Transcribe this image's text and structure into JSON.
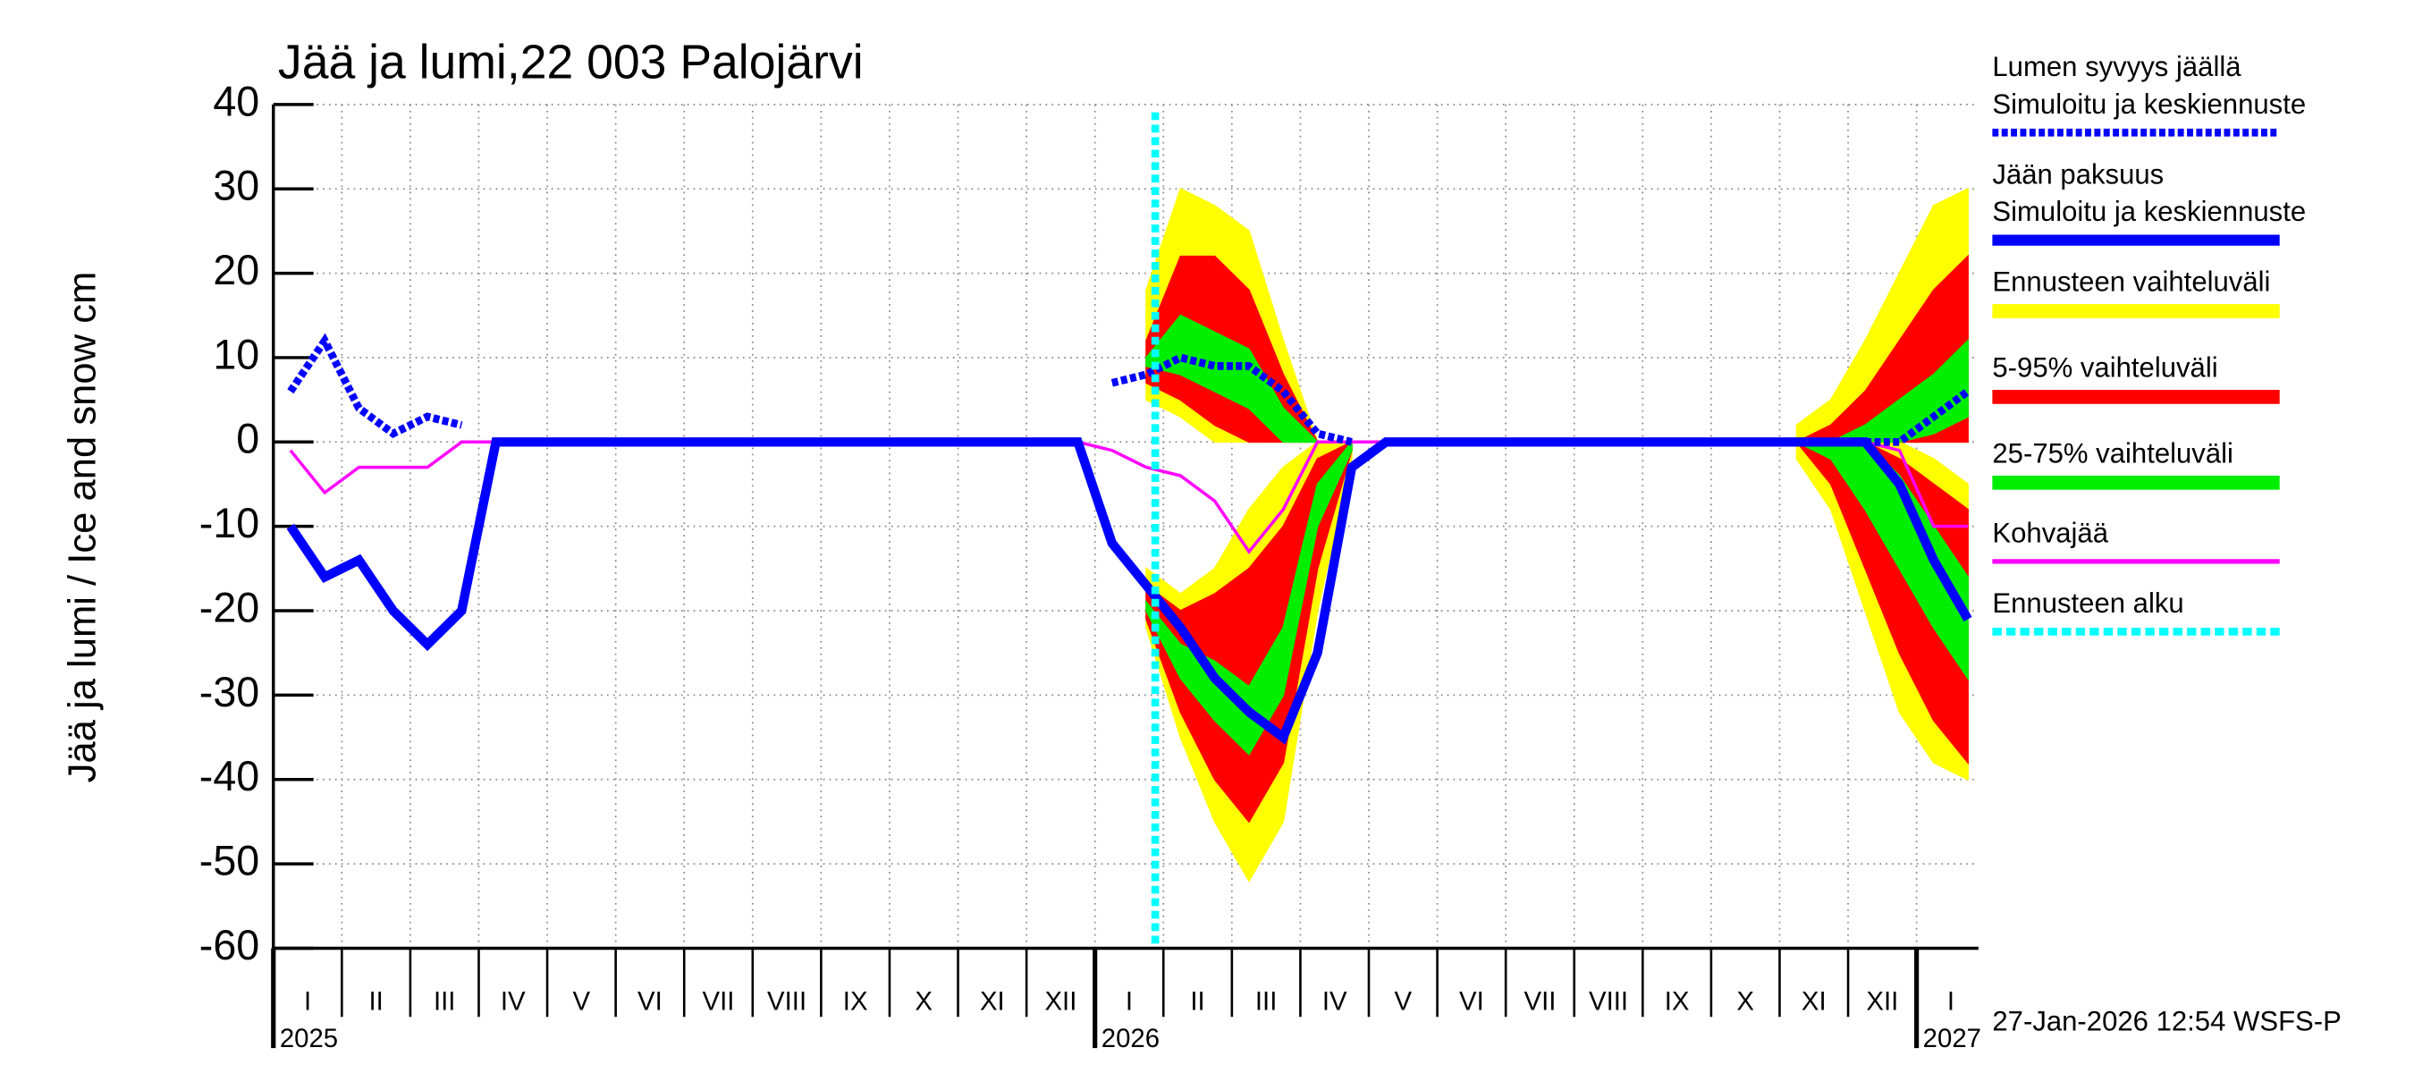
{
  "chart_data": {
    "type": "line",
    "title": "Jää ja lumi,22 003 Palojärvi",
    "y_label": "Jää ja lumi / Ice and snow    cm",
    "footer": "27-Jan-2026 12:54 WSFS-P",
    "categories": [
      "I",
      null,
      "II",
      null,
      "III",
      null,
      "IV",
      null,
      "V",
      null,
      "VI",
      null,
      "VII",
      null,
      "VIII",
      null,
      "IX",
      null,
      "X",
      null,
      "XI",
      null,
      "XII",
      null,
      "I",
      null,
      "II",
      null,
      "III",
      null,
      "IV",
      null,
      "V",
      null,
      "VI",
      null,
      "VII",
      null,
      "VIII",
      null,
      "IX",
      null,
      "X",
      null,
      "XI",
      null,
      "XII",
      null,
      "I",
      null
    ],
    "years": [
      "2025",
      "2026",
      "2027"
    ],
    "ylim": [
      -60,
      40
    ],
    "yticks": [
      -60,
      -50,
      -40,
      -30,
      -20,
      -10,
      0,
      10,
      20,
      30,
      40
    ],
    "grid": true,
    "series": [
      {
        "name": "Lumen syvyys jäällä",
        "legend_sub": "Simuloitu ja keskiennuste",
        "color": "#0000ff",
        "style": "dashed",
        "values": [
          6,
          12,
          4,
          1,
          3,
          2,
          null,
          null,
          null,
          null,
          null,
          null,
          null,
          null,
          null,
          null,
          null,
          null,
          null,
          null,
          null,
          null,
          null,
          null,
          7,
          8,
          10,
          9,
          9,
          6,
          1,
          0,
          null,
          null,
          null,
          null,
          null,
          null,
          null,
          null,
          null,
          null,
          null,
          null,
          null,
          null,
          0,
          0,
          3,
          6
        ]
      },
      {
        "name": "Jään paksuus",
        "legend_sub": "Simuloitu ja keskiennuste",
        "color": "#0000ff",
        "style": "solid",
        "values": [
          -10,
          -16,
          -14,
          -20,
          -24,
          -20,
          0,
          0,
          0,
          0,
          0,
          0,
          0,
          0,
          0,
          0,
          0,
          0,
          0,
          0,
          0,
          0,
          0,
          0,
          -12,
          -17,
          -22,
          -28,
          -32,
          -35,
          -25,
          -3,
          0,
          0,
          0,
          0,
          0,
          0,
          0,
          0,
          0,
          0,
          0,
          0,
          0,
          0,
          0,
          -5,
          -14,
          -21
        ]
      },
      {
        "name": "Kohvajää",
        "color": "#ff00ff",
        "style": "thin",
        "values": [
          -1,
          -6,
          -3,
          -3,
          -3,
          0,
          0,
          0,
          0,
          0,
          0,
          0,
          0,
          0,
          0,
          0,
          0,
          0,
          0,
          0,
          0,
          0,
          0,
          0,
          -1,
          -3,
          -4,
          -7,
          -13,
          -8,
          0,
          0,
          0,
          0,
          0,
          0,
          0,
          0,
          0,
          0,
          0,
          0,
          0,
          0,
          0,
          0,
          0,
          -1,
          -10,
          -10
        ]
      }
    ],
    "bands": [
      {
        "name": "Ennusteen vaihteluväli",
        "color": "#ffff00",
        "snow_high": [
          null,
          null,
          null,
          null,
          null,
          null,
          null,
          null,
          null,
          null,
          null,
          null,
          null,
          null,
          null,
          null,
          null,
          null,
          null,
          null,
          null,
          null,
          null,
          null,
          null,
          18,
          30,
          28,
          25,
          12,
          0,
          null,
          null,
          null,
          null,
          null,
          null,
          null,
          null,
          null,
          null,
          null,
          null,
          null,
          2,
          5,
          12,
          20,
          28,
          30
        ],
        "snow_low": [
          null,
          null,
          null,
          null,
          null,
          null,
          null,
          null,
          null,
          null,
          null,
          null,
          null,
          null,
          null,
          null,
          null,
          null,
          null,
          null,
          null,
          null,
          null,
          null,
          null,
          5,
          3,
          0,
          0,
          0,
          0,
          null,
          null,
          null,
          null,
          null,
          null,
          null,
          null,
          null,
          null,
          null,
          null,
          null,
          0,
          0,
          0,
          0,
          0,
          0
        ],
        "high": [
          null,
          null,
          null,
          null,
          null,
          null,
          null,
          null,
          null,
          null,
          null,
          null,
          null,
          null,
          null,
          null,
          null,
          null,
          null,
          null,
          null,
          null,
          null,
          null,
          null,
          -15,
          -18,
          -15,
          -8,
          -3,
          0,
          0,
          null,
          null,
          null,
          null,
          null,
          null,
          null,
          null,
          null,
          null,
          null,
          null,
          0,
          0,
          0,
          0,
          -2,
          -5
        ],
        "low": [
          null,
          null,
          null,
          null,
          null,
          null,
          null,
          null,
          null,
          null,
          null,
          null,
          null,
          null,
          null,
          null,
          null,
          null,
          null,
          null,
          null,
          null,
          null,
          null,
          null,
          -22,
          -35,
          -45,
          -52,
          -45,
          -20,
          -2,
          null,
          null,
          null,
          null,
          null,
          null,
          null,
          null,
          null,
          null,
          null,
          null,
          -2,
          -8,
          -20,
          -32,
          -38,
          -40
        ]
      },
      {
        "name": "5-95% vaihteluväli",
        "color": "#ff0000",
        "snow_high": [
          null,
          null,
          null,
          null,
          null,
          null,
          null,
          null,
          null,
          null,
          null,
          null,
          null,
          null,
          null,
          null,
          null,
          null,
          null,
          null,
          null,
          null,
          null,
          null,
          null,
          12,
          22,
          22,
          18,
          8,
          0,
          null,
          null,
          null,
          null,
          null,
          null,
          null,
          null,
          null,
          null,
          null,
          null,
          null,
          0,
          2,
          6,
          12,
          18,
          22
        ],
        "snow_low": [
          null,
          null,
          null,
          null,
          null,
          null,
          null,
          null,
          null,
          null,
          null,
          null,
          null,
          null,
          null,
          null,
          null,
          null,
          null,
          null,
          null,
          null,
          null,
          null,
          null,
          7,
          5,
          2,
          0,
          0,
          0,
          null,
          null,
          null,
          null,
          null,
          null,
          null,
          null,
          null,
          null,
          null,
          null,
          null,
          0,
          0,
          0,
          0,
          0,
          0
        ],
        "high": [
          null,
          null,
          null,
          null,
          null,
          null,
          null,
          null,
          null,
          null,
          null,
          null,
          null,
          null,
          null,
          null,
          null,
          null,
          null,
          null,
          null,
          null,
          null,
          null,
          null,
          -17,
          -20,
          -18,
          -15,
          -10,
          -2,
          0,
          null,
          null,
          null,
          null,
          null,
          null,
          null,
          null,
          null,
          null,
          null,
          null,
          0,
          0,
          0,
          -2,
          -5,
          -8
        ],
        "low": [
          null,
          null,
          null,
          null,
          null,
          null,
          null,
          null,
          null,
          null,
          null,
          null,
          null,
          null,
          null,
          null,
          null,
          null,
          null,
          null,
          null,
          null,
          null,
          null,
          null,
          -21,
          -32,
          -40,
          -45,
          -38,
          -15,
          -1,
          null,
          null,
          null,
          null,
          null,
          null,
          null,
          null,
          null,
          null,
          null,
          null,
          0,
          -5,
          -15,
          -25,
          -33,
          -38
        ]
      },
      {
        "name": "25-75% vaihteluväli",
        "color": "#00ee00",
        "snow_high": [
          null,
          null,
          null,
          null,
          null,
          null,
          null,
          null,
          null,
          null,
          null,
          null,
          null,
          null,
          null,
          null,
          null,
          null,
          null,
          null,
          null,
          null,
          null,
          null,
          null,
          10,
          15,
          13,
          11,
          4,
          0,
          null,
          null,
          null,
          null,
          null,
          null,
          null,
          null,
          null,
          null,
          null,
          null,
          null,
          0,
          0,
          2,
          5,
          8,
          12
        ],
        "snow_low": [
          null,
          null,
          null,
          null,
          null,
          null,
          null,
          null,
          null,
          null,
          null,
          null,
          null,
          null,
          null,
          null,
          null,
          null,
          null,
          null,
          null,
          null,
          null,
          null,
          null,
          9,
          8,
          6,
          4,
          0,
          0,
          null,
          null,
          null,
          null,
          null,
          null,
          null,
          null,
          null,
          null,
          null,
          null,
          null,
          0,
          0,
          0,
          0,
          1,
          3
        ],
        "high": [
          null,
          null,
          null,
          null,
          null,
          null,
          null,
          null,
          null,
          null,
          null,
          null,
          null,
          null,
          null,
          null,
          null,
          null,
          null,
          null,
          null,
          null,
          null,
          null,
          null,
          -19,
          -24,
          -26,
          -29,
          -22,
          -5,
          0,
          null,
          null,
          null,
          null,
          null,
          null,
          null,
          null,
          null,
          null,
          null,
          null,
          0,
          0,
          0,
          -4,
          -10,
          -16
        ],
        "low": [
          null,
          null,
          null,
          null,
          null,
          null,
          null,
          null,
          null,
          null,
          null,
          null,
          null,
          null,
          null,
          null,
          null,
          null,
          null,
          null,
          null,
          null,
          null,
          null,
          null,
          -20,
          -28,
          -33,
          -37,
          -30,
          -10,
          -1,
          null,
          null,
          null,
          null,
          null,
          null,
          null,
          null,
          null,
          null,
          null,
          null,
          0,
          -2,
          -8,
          -15,
          -22,
          -28
        ]
      }
    ],
    "forecast_start_label": "Ennusteen alku",
    "forecast_start_color": "#00ffff"
  }
}
